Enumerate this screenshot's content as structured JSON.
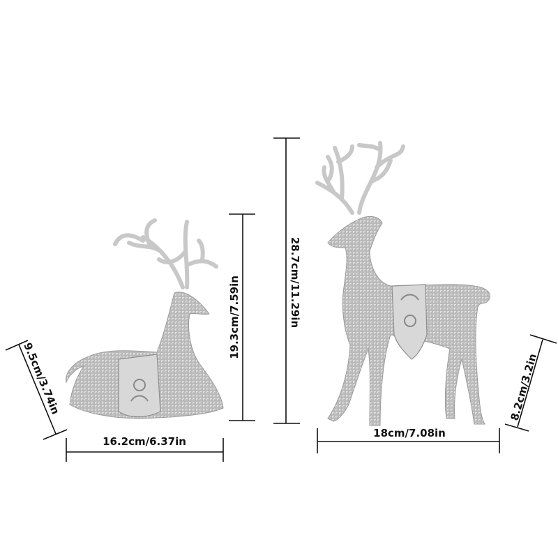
{
  "product": {
    "colors": {
      "figurine": "#bdbdbd",
      "dimension_lines": "#111111",
      "background": "#ffffff"
    },
    "lying_deer": {
      "depth_label": "9.5cm/3.74in",
      "width_label": "16.2cm/6.37in",
      "height_label": "19.3cm/7.59in"
    },
    "standing_deer": {
      "height_label": "28.7cm/11.29in",
      "width_label": "18cm/7.08in",
      "depth_label": "8.2cm/3.2in"
    }
  }
}
